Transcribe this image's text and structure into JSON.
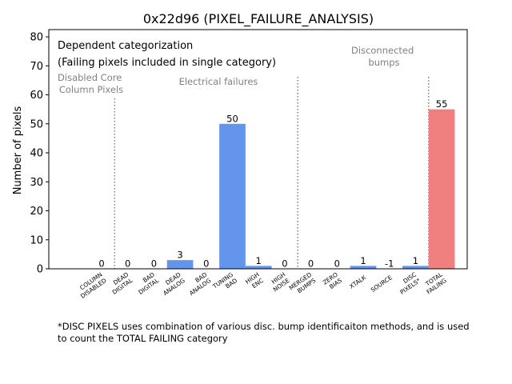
{
  "chart_data": {
    "type": "bar",
    "title": "0x22d96 (PIXEL_FAILURE_ANALYSIS)",
    "xlabel": "",
    "ylabel": "Number of pixels",
    "ylim": [
      0,
      82.5
    ],
    "yticks": [
      0,
      10,
      20,
      30,
      40,
      50,
      60,
      70,
      80
    ],
    "categories": [
      [
        "COLUMN",
        "DISABLED"
      ],
      [
        "DEAD",
        "DIGITAL"
      ],
      [
        "BAD",
        "DIGITAL"
      ],
      [
        "DEAD",
        "ANALOG"
      ],
      [
        "BAD",
        "ANALOG"
      ],
      [
        "TUNING",
        "BAD"
      ],
      [
        "HIGH",
        "ENC"
      ],
      [
        "HIGH",
        "NOISE"
      ],
      [
        "MERGED",
        "BUMPS"
      ],
      [
        "ZERO",
        "BIAS"
      ],
      [
        "XTALK"
      ],
      [
        "SOURCE"
      ],
      [
        "DISC",
        "PIXELS*"
      ],
      [
        "TOTAL",
        "FAILING"
      ]
    ],
    "values": [
      0,
      0,
      0,
      3,
      0,
      50,
      1,
      0,
      0,
      0,
      1,
      -1,
      1,
      55
    ],
    "value_labels": [
      "0",
      "0",
      "0",
      "3",
      "0",
      "50",
      "1",
      "0",
      "0",
      "0",
      "1",
      "-1",
      "1",
      "55"
    ],
    "colors": {
      "bar": "#6495ed",
      "total": "#f08080",
      "divider": "#808080",
      "group_text": "#808080",
      "text": "#000000"
    },
    "dividers_after_index": [
      0,
      7,
      12
    ],
    "group_labels": [
      {
        "lines": [
          "Disabled Core",
          "Column Pixels"
        ]
      },
      {
        "lines": [
          "Electrical failures"
        ]
      },
      {
        "lines": [
          "Disconnected",
          "bumps"
        ]
      }
    ],
    "legend_box": {
      "lines": [
        "Dependent categorization",
        "(Failing pixels included in single category)"
      ],
      "placement": "top-left"
    }
  },
  "footnote": {
    "line1": "*DISC PIXELS uses combination of various disc. bump identificaiton methods, and is used",
    "line2": "to count the TOTAL FAILING category"
  }
}
